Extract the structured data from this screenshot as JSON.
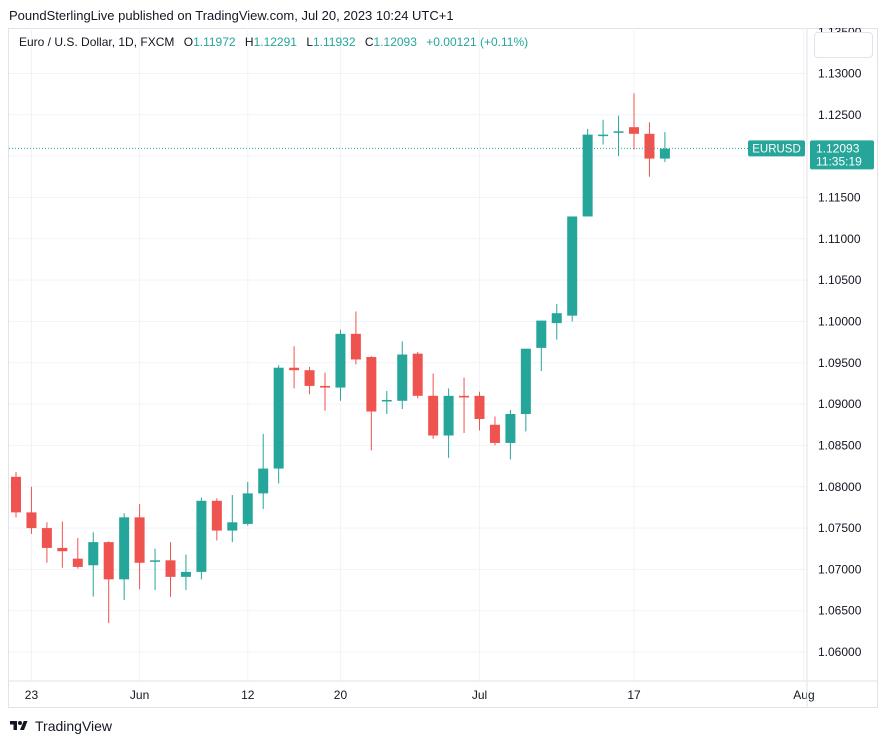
{
  "header": {
    "published": "PoundSterlingLive published on TradingView.com, Jul 20, 2023 10:24 UTC+1"
  },
  "legend": {
    "symbol": "Euro / U.S. Dollar, 1D, FXCM",
    "open_label": "O",
    "open": "1.11972",
    "high_label": "H",
    "high": "1.12291",
    "low_label": "L",
    "low": "1.11932",
    "close_label": "C",
    "close": "1.12093",
    "change": "+0.00121 (+0.11%)"
  },
  "price_tag": {
    "symbol": "EURUSD",
    "price": "1.12093",
    "countdown": "11:35:19"
  },
  "footer": {
    "brand": "TradingView"
  },
  "colors": {
    "up": "#26a69a",
    "down": "#ef5350",
    "grid": "#f0f3fa",
    "axis_text": "#131722"
  },
  "chart_data": {
    "type": "candlestick",
    "ylim": [
      1.0565,
      1.1355
    ],
    "y_ticks": [
      "1.06000",
      "1.06500",
      "1.07000",
      "1.07500",
      "1.08000",
      "1.08500",
      "1.09000",
      "1.09500",
      "1.10000",
      "1.10500",
      "1.11000",
      "1.11500",
      "1.12000",
      "1.12500",
      "1.13000"
    ],
    "x_tick_labels": [
      {
        "label": "23",
        "date": "2023-05-23"
      },
      {
        "label": "Jun",
        "date": "2023-06-01"
      },
      {
        "label": "12",
        "date": "2023-06-12"
      },
      {
        "label": "20",
        "date": "2023-06-20"
      },
      {
        "label": "Jul",
        "date": "2023-07-03"
      },
      {
        "label": "17",
        "date": "2023-07-17"
      },
      {
        "label": "Aug",
        "date": "2023-08-01"
      }
    ],
    "last_price": 1.12093,
    "candles": [
      {
        "date": "2023-05-22",
        "o": 1.0812,
        "h": 1.0818,
        "l": 1.0763,
        "c": 1.0769
      },
      {
        "date": "2023-05-23",
        "o": 1.0769,
        "h": 1.08,
        "l": 1.0743,
        "c": 1.075
      },
      {
        "date": "2023-05-24",
        "o": 1.075,
        "h": 1.0757,
        "l": 1.0708,
        "c": 1.0726
      },
      {
        "date": "2023-05-25",
        "o": 1.0726,
        "h": 1.0758,
        "l": 1.0702,
        "c": 1.0722
      },
      {
        "date": "2023-05-26",
        "o": 1.0713,
        "h": 1.0738,
        "l": 1.0701,
        "c": 1.0703
      },
      {
        "date": "2023-05-29",
        "o": 1.0705,
        "h": 1.0745,
        "l": 1.0667,
        "c": 1.0733
      },
      {
        "date": "2023-05-30",
        "o": 1.0733,
        "h": 1.0734,
        "l": 1.0635,
        "c": 1.0688
      },
      {
        "date": "2023-05-31",
        "o": 1.0688,
        "h": 1.0768,
        "l": 1.0663,
        "c": 1.0763
      },
      {
        "date": "2023-06-01",
        "o": 1.0763,
        "h": 1.0779,
        "l": 1.0676,
        "c": 1.0708
      },
      {
        "date": "2023-06-02",
        "o": 1.0711,
        "h": 1.0725,
        "l": 1.0675,
        "c": 1.0711
      },
      {
        "date": "2023-06-05",
        "o": 1.0711,
        "h": 1.0733,
        "l": 1.0667,
        "c": 1.0691
      },
      {
        "date": "2023-06-06",
        "o": 1.0691,
        "h": 1.0718,
        "l": 1.0675,
        "c": 1.0697
      },
      {
        "date": "2023-06-07",
        "o": 1.0697,
        "h": 1.0787,
        "l": 1.0688,
        "c": 1.0783
      },
      {
        "date": "2023-06-08",
        "o": 1.0783,
        "h": 1.0786,
        "l": 1.0735,
        "c": 1.0747
      },
      {
        "date": "2023-06-09",
        "o": 1.0747,
        "h": 1.079,
        "l": 1.0733,
        "c": 1.0757
      },
      {
        "date": "2023-06-12",
        "o": 1.0755,
        "h": 1.0806,
        "l": 1.0753,
        "c": 1.0792
      },
      {
        "date": "2023-06-13",
        "o": 1.0792,
        "h": 1.0864,
        "l": 1.0773,
        "c": 1.0822
      },
      {
        "date": "2023-06-14",
        "o": 1.0822,
        "h": 1.0947,
        "l": 1.0804,
        "c": 1.0944
      },
      {
        "date": "2023-06-15",
        "o": 1.0944,
        "h": 1.097,
        "l": 1.0919,
        "c": 1.0941
      },
      {
        "date": "2023-06-16",
        "o": 1.0941,
        "h": 1.0945,
        "l": 1.0912,
        "c": 1.0922
      },
      {
        "date": "2023-06-19",
        "o": 1.0922,
        "h": 1.0938,
        "l": 1.0892,
        "c": 1.092
      },
      {
        "date": "2023-06-20",
        "o": 1.092,
        "h": 1.099,
        "l": 1.0904,
        "c": 1.0985
      },
      {
        "date": "2023-06-21",
        "o": 1.0985,
        "h": 1.1012,
        "l": 1.0948,
        "c": 1.0954
      },
      {
        "date": "2023-06-22",
        "o": 1.0957,
        "h": 1.0958,
        "l": 1.0844,
        "c": 1.0891
      },
      {
        "date": "2023-06-23",
        "o": 1.0904,
        "h": 1.0916,
        "l": 1.0888,
        "c": 1.0905
      },
      {
        "date": "2023-06-26",
        "o": 1.0904,
        "h": 1.0976,
        "l": 1.0894,
        "c": 1.096
      },
      {
        "date": "2023-06-27",
        "o": 1.0961,
        "h": 1.0963,
        "l": 1.0907,
        "c": 1.091
      },
      {
        "date": "2023-06-28",
        "o": 1.091,
        "h": 1.0937,
        "l": 1.0858,
        "c": 1.0862
      },
      {
        "date": "2023-06-29",
        "o": 1.0862,
        "h": 1.0919,
        "l": 1.0835,
        "c": 1.091
      },
      {
        "date": "2023-06-30",
        "o": 1.091,
        "h": 1.0932,
        "l": 1.0865,
        "c": 1.0908
      },
      {
        "date": "2023-07-03",
        "o": 1.091,
        "h": 1.0915,
        "l": 1.0868,
        "c": 1.0882
      },
      {
        "date": "2023-07-04",
        "o": 1.0875,
        "h": 1.0885,
        "l": 1.085,
        "c": 1.0853
      },
      {
        "date": "2023-07-05",
        "o": 1.0853,
        "h": 1.0893,
        "l": 1.0833,
        "c": 1.0888
      },
      {
        "date": "2023-07-06",
        "o": 1.0888,
        "h": 1.0967,
        "l": 1.0867,
        "c": 1.0967
      },
      {
        "date": "2023-07-07",
        "o": 1.0968,
        "h": 1.1001,
        "l": 1.094,
        "c": 1.1001
      },
      {
        "date": "2023-07-10",
        "o": 1.0998,
        "h": 1.1021,
        "l": 1.0978,
        "c": 1.101
      },
      {
        "date": "2023-07-11",
        "o": 1.1007,
        "h": 1.1127,
        "l": 1.1,
        "c": 1.1127
      },
      {
        "date": "2023-07-12",
        "o": 1.1127,
        "h": 1.1233,
        "l": 1.1127,
        "c": 1.1226
      },
      {
        "date": "2023-07-13",
        "o": 1.1226,
        "h": 1.1244,
        "l": 1.1214,
        "c": 1.1226
      },
      {
        "date": "2023-07-14",
        "o": 1.123,
        "h": 1.1249,
        "l": 1.12,
        "c": 1.123
      },
      {
        "date": "2023-07-17",
        "o": 1.1235,
        "h": 1.1276,
        "l": 1.1208,
        "c": 1.1227
      },
      {
        "date": "2023-07-18",
        "o": 1.1227,
        "h": 1.1241,
        "l": 1.1175,
        "c": 1.1197
      },
      {
        "date": "2023-07-19",
        "o": 1.1197,
        "h": 1.1229,
        "l": 1.1193,
        "c": 1.1209
      }
    ]
  }
}
